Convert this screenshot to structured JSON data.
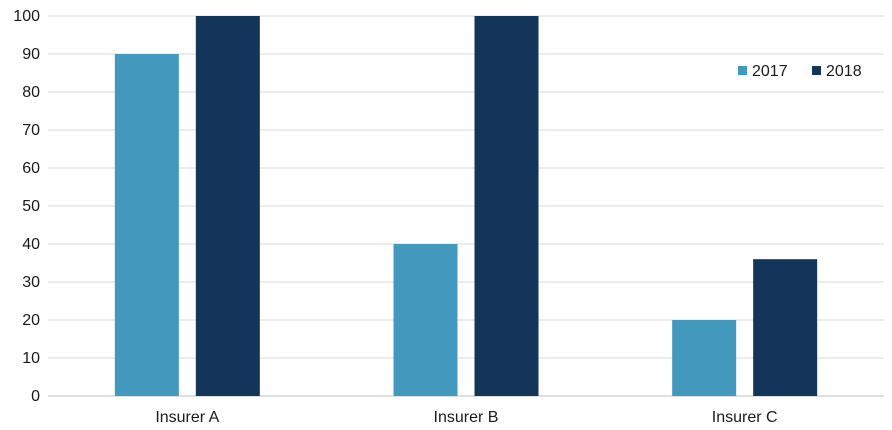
{
  "chart_data": {
    "type": "bar",
    "title": "",
    "xlabel": "",
    "ylabel": "",
    "categories": [
      "Insurer A",
      "Insurer B",
      "Insurer C"
    ],
    "series": [
      {
        "name": "2017",
        "values": [
          90,
          40,
          20
        ],
        "color": "#4398bd"
      },
      {
        "name": "2018",
        "values": [
          100,
          100,
          36
        ],
        "color": "#14355a"
      }
    ],
    "ylim": [
      0,
      100
    ],
    "yticks": [
      0,
      10,
      20,
      30,
      40,
      50,
      60,
      70,
      80,
      90,
      100
    ],
    "grid": true,
    "legend": {
      "position": "top-right",
      "entries": [
        "2017",
        "2018"
      ]
    },
    "colors": {
      "grid": "#d9d9d9",
      "axis": "#bfbfbf",
      "text": "#1a1a1a"
    }
  }
}
